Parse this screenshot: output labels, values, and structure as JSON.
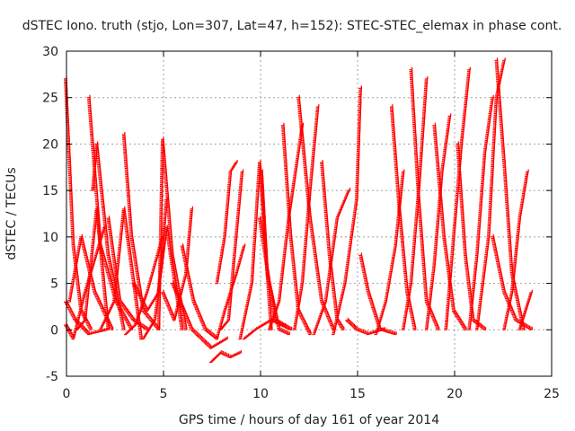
{
  "chart_data": {
    "type": "scatter",
    "title": "dSTEC Iono. truth (stjo, Lon=307, Lat=47, h=152): STEC-STEC_elemax in phase cont.",
    "xlabel": "GPS time / hours of day 161 of year 2014",
    "ylabel": "dSTEC  / TECUs",
    "xlim": [
      0,
      25
    ],
    "ylim": [
      -5,
      30
    ],
    "xticks": [
      0,
      5,
      10,
      15,
      20,
      25
    ],
    "yticks": [
      -5,
      0,
      5,
      10,
      15,
      20,
      25,
      30
    ],
    "grid": true,
    "marker": "plus",
    "color": "#ff0000",
    "arcs": [
      {
        "x": [
          0.0,
          0.4,
          0.8,
          1.3
        ],
        "y": [
          27,
          9,
          2,
          0
        ]
      },
      {
        "x": [
          0.0,
          0.4,
          1.0,
          2.0
        ],
        "y": [
          0.5,
          -1.0,
          4,
          11
        ]
      },
      {
        "x": [
          0.0,
          0.5,
          1.2,
          2.2
        ],
        "y": [
          3,
          1,
          -0.5,
          0
        ]
      },
      {
        "x": [
          0.2,
          0.8,
          1.5,
          2.4
        ],
        "y": [
          3,
          10,
          4,
          0
        ]
      },
      {
        "x": [
          0.6,
          1.0,
          1.6,
          2.2
        ],
        "y": [
          0,
          1,
          13,
          0
        ]
      },
      {
        "x": [
          1.2,
          1.8,
          2.6,
          3.4
        ],
        "y": [
          25,
          9,
          3,
          0
        ]
      },
      {
        "x": [
          1.4,
          1.6,
          2.2,
          3.0
        ],
        "y": [
          15,
          20,
          8,
          0
        ]
      },
      {
        "x": [
          1.8,
          2.5,
          3.0,
          3.9
        ],
        "y": [
          0,
          3,
          13,
          -1.0
        ]
      },
      {
        "x": [
          2.2,
          2.8,
          3.5,
          4.2
        ],
        "y": [
          12,
          3,
          1,
          0
        ]
      },
      {
        "x": [
          3.0,
          3.4,
          4.0,
          4.8
        ],
        "y": [
          21,
          10,
          2,
          0
        ]
      },
      {
        "x": [
          3.1,
          3.6,
          4.2,
          5.0
        ],
        "y": [
          -0.5,
          0.5,
          4,
          10
        ]
      },
      {
        "x": [
          3.5,
          4.2,
          4.8,
          5.2
        ],
        "y": [
          5,
          2,
          4,
          14
        ]
      },
      {
        "x": [
          4.0,
          4.6,
          5.2,
          6.0
        ],
        "y": [
          -1.0,
          1,
          11,
          0
        ]
      },
      {
        "x": [
          4.8,
          5.0,
          5.5,
          6.2
        ],
        "y": [
          0,
          20.5,
          8,
          0
        ]
      },
      {
        "x": [
          5.0,
          5.6,
          6.2,
          6.5
        ],
        "y": [
          4,
          1,
          6,
          13
        ]
      },
      {
        "x": [
          5.5,
          6.5,
          7.5,
          8.3
        ],
        "y": [
          5,
          0,
          -2.0,
          -1.0
        ]
      },
      {
        "x": [
          6.0,
          6.6,
          7.2,
          7.8
        ],
        "y": [
          9,
          3,
          0,
          -1.0
        ]
      },
      {
        "x": [
          7.5,
          8.0,
          8.5,
          9.0
        ],
        "y": [
          -3.5,
          -2.5,
          -3.0,
          -2.5
        ]
      },
      {
        "x": [
          7.8,
          8.2,
          8.8,
          9.2
        ],
        "y": [
          -1.0,
          2,
          6,
          9
        ]
      },
      {
        "x": [
          8.0,
          8.4,
          8.7,
          9.1
        ],
        "y": [
          0,
          1,
          8,
          17
        ]
      },
      {
        "x": [
          7.8,
          8.2,
          8.5,
          8.8
        ],
        "y": [
          5,
          10,
          17,
          18
        ]
      },
      {
        "x": [
          9.0,
          9.6,
          10.0,
          10.6
        ],
        "y": [
          -1.0,
          5,
          18,
          0
        ]
      },
      {
        "x": [
          9.2,
          9.8,
          10.6,
          11.6
        ],
        "y": [
          -1.0,
          0,
          1,
          0
        ]
      },
      {
        "x": [
          10.0,
          10.5,
          11.0,
          11.5
        ],
        "y": [
          12,
          5,
          0,
          -0.5
        ]
      },
      {
        "x": [
          10.1,
          10.4,
          10.8,
          11.6
        ],
        "y": [
          17,
          6,
          1,
          0
        ]
      },
      {
        "x": [
          10.5,
          11.0,
          11.5,
          12.2
        ],
        "y": [
          0,
          3,
          12,
          22
        ]
      },
      {
        "x": [
          11.2,
          11.6,
          12.0,
          12.6
        ],
        "y": [
          22,
          10,
          2,
          -0.5
        ]
      },
      {
        "x": [
          11.8,
          12.2,
          12.6,
          13.0
        ],
        "y": [
          0,
          5,
          15,
          24
        ]
      },
      {
        "x": [
          12.0,
          12.6,
          13.2,
          13.8
        ],
        "y": [
          25,
          12,
          3,
          0
        ]
      },
      {
        "x": [
          12.8,
          13.4,
          14.0,
          14.6
        ],
        "y": [
          -0.5,
          3,
          12,
          15
        ]
      },
      {
        "x": [
          13.2,
          13.6,
          14.0,
          14.3
        ],
        "y": [
          18,
          8,
          1,
          0
        ]
      },
      {
        "x": [
          13.8,
          14.4,
          15.0,
          15.2
        ],
        "y": [
          -0.5,
          5,
          14,
          26
        ]
      },
      {
        "x": [
          14.5,
          15.0,
          15.6,
          16.4
        ],
        "y": [
          1,
          0,
          -0.5,
          0
        ]
      },
      {
        "x": [
          15.2,
          15.6,
          16.2,
          17.0
        ],
        "y": [
          8,
          4,
          0,
          -0.5
        ]
      },
      {
        "x": [
          16.0,
          16.5,
          17.0,
          17.4
        ],
        "y": [
          -0.5,
          3,
          9,
          17
        ]
      },
      {
        "x": [
          16.8,
          17.2,
          17.6,
          18.0
        ],
        "y": [
          24,
          13,
          4,
          0
        ]
      },
      {
        "x": [
          17.4,
          17.8,
          18.2,
          18.6
        ],
        "y": [
          0,
          5,
          15,
          27
        ]
      },
      {
        "x": [
          17.8,
          18.2,
          18.6,
          19.2
        ],
        "y": [
          28,
          14,
          3,
          0
        ]
      },
      {
        "x": [
          18.6,
          19.0,
          19.4,
          19.8
        ],
        "y": [
          0,
          7,
          17,
          23
        ]
      },
      {
        "x": [
          19.0,
          19.5,
          20.0,
          20.6
        ],
        "y": [
          22,
          10,
          2,
          0
        ]
      },
      {
        "x": [
          19.6,
          20.0,
          20.4,
          20.8
        ],
        "y": [
          0,
          10,
          20,
          28
        ]
      },
      {
        "x": [
          20.2,
          20.6,
          21.0,
          21.6
        ],
        "y": [
          20,
          8,
          1,
          0
        ]
      },
      {
        "x": [
          20.8,
          21.2,
          21.6,
          22.0
        ],
        "y": [
          0,
          8,
          19,
          25
        ]
      },
      {
        "x": [
          21.2,
          21.8,
          22.2,
          22.6
        ],
        "y": [
          0,
          10,
          25,
          29
        ]
      },
      {
        "x": [
          22.2,
          22.6,
          23.0,
          23.6
        ],
        "y": [
          29,
          18,
          6,
          0
        ]
      },
      {
        "x": [
          22.0,
          22.6,
          23.2,
          24.0
        ],
        "y": [
          10,
          4,
          1,
          0
        ]
      },
      {
        "x": [
          22.6,
          23.0,
          23.4,
          23.8
        ],
        "y": [
          0,
          4,
          12,
          17
        ]
      },
      {
        "x": [
          23.4,
          23.7,
          24.0
        ],
        "y": [
          0,
          2,
          4
        ]
      }
    ]
  }
}
